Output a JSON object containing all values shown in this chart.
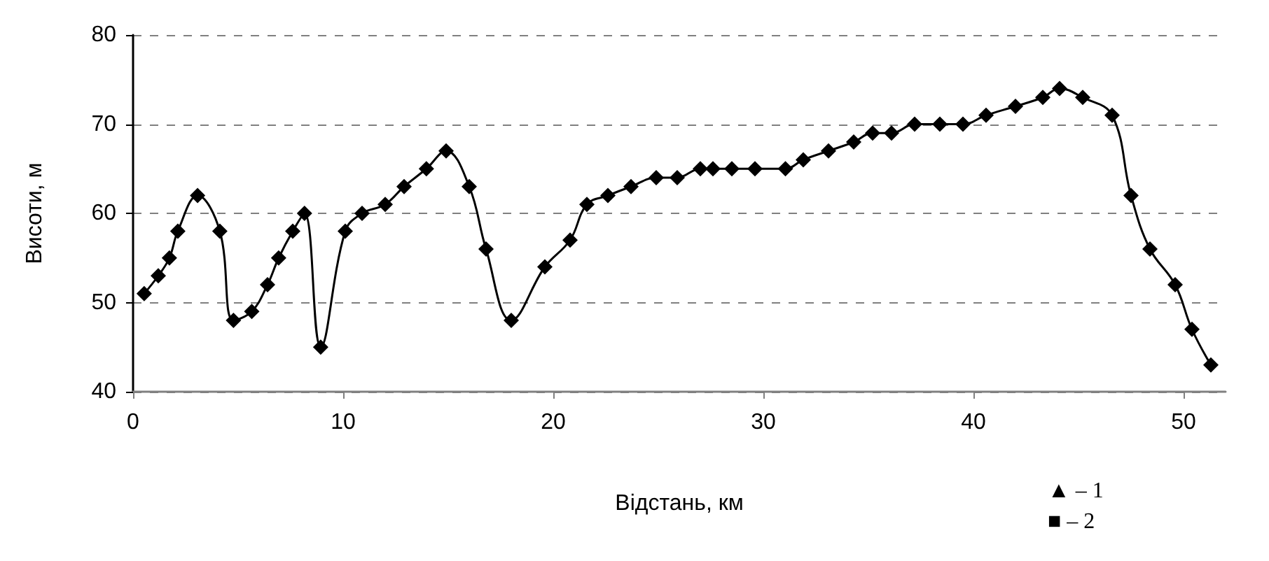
{
  "chart_data": {
    "type": "line",
    "xlabel": "Відстань, км",
    "ylabel": "Висоти, м",
    "x": [
      0.53,
      1.2,
      1.73,
      2.13,
      3.07,
      4.13,
      4.78,
      5.65,
      6.4,
      6.93,
      7.6,
      8.16,
      8.93,
      10.1,
      10.9,
      12.0,
      12.9,
      13.96,
      14.9,
      16.0,
      16.8,
      18.0,
      19.6,
      20.8,
      21.6,
      22.6,
      23.7,
      24.9,
      25.9,
      27.0,
      27.6,
      28.5,
      29.6,
      31.05,
      31.9,
      33.1,
      34.3,
      35.2,
      36.1,
      37.2,
      38.4,
      39.5,
      40.6,
      42.0,
      43.3,
      44.1,
      45.2,
      46.6,
      47.5,
      48.4,
      49.6,
      50.4,
      51.3
    ],
    "series": [
      {
        "color": "#000000",
        "values": [
          51,
          53,
          55,
          58,
          62,
          58,
          48,
          49,
          52,
          55,
          58,
          60,
          45,
          58,
          60,
          61,
          63,
          65,
          67,
          63,
          56,
          48,
          54,
          57,
          61,
          62,
          63,
          64,
          64,
          65,
          65,
          65,
          65,
          65,
          66,
          67,
          68,
          69,
          69,
          70,
          70,
          70,
          71,
          72,
          73,
          74,
          73,
          71,
          62,
          56,
          52,
          47,
          43
        ]
      }
    ],
    "xlim": [
      0,
      52
    ],
    "xticks": [
      0,
      10,
      20,
      30,
      40,
      50
    ],
    "ylim": [
      40,
      80
    ],
    "yticks": [
      40,
      50,
      60,
      70,
      80
    ],
    "grid": "y",
    "marker": "diamond",
    "line_style": "solid",
    "annotations": [
      "▲ – 1",
      "■ – 2"
    ]
  }
}
